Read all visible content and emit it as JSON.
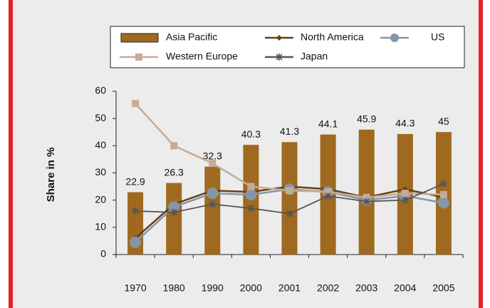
{
  "chart_data": {
    "type": "bar",
    "y_label": "Share  in %",
    "categories": [
      "1970",
      "1980",
      "1990",
      "2000",
      "2001",
      "2002",
      "2003",
      "2004",
      "2005"
    ],
    "series": [
      {
        "name": "Asia Pacific",
        "type": "bar",
        "color": "#9f6a1f",
        "values": [
          22.9,
          26.3,
          32.3,
          40.3,
          41.3,
          44.1,
          45.9,
          44.3,
          45
        ]
      },
      {
        "name": "North America",
        "type": "line",
        "marker": "diamond",
        "color": "#6b3e12",
        "values": [
          6,
          18.5,
          23.5,
          23,
          25,
          24,
          21,
          24,
          21
        ]
      },
      {
        "name": "US",
        "type": "line",
        "marker": "circle",
        "color": "#8496a8",
        "values": [
          4.5,
          17.5,
          22.5,
          22,
          24,
          23,
          20,
          21.5,
          19
        ]
      },
      {
        "name": "Western Europe",
        "type": "line",
        "marker": "square",
        "color": "#c5ab98",
        "values": [
          55.5,
          40,
          33.5,
          25,
          23.5,
          23,
          21,
          22.5,
          22
        ]
      },
      {
        "name": "Japan",
        "type": "line",
        "marker": "star",
        "color": "#555555",
        "values": [
          16,
          15.5,
          18.5,
          17,
          15,
          21.5,
          19.5,
          20,
          26
        ]
      }
    ],
    "ylim": [
      0,
      60
    ],
    "yticks": [
      0,
      10,
      20,
      30,
      40,
      50,
      60
    ],
    "grid": false,
    "value_labels_on": "Asia Pacific"
  }
}
